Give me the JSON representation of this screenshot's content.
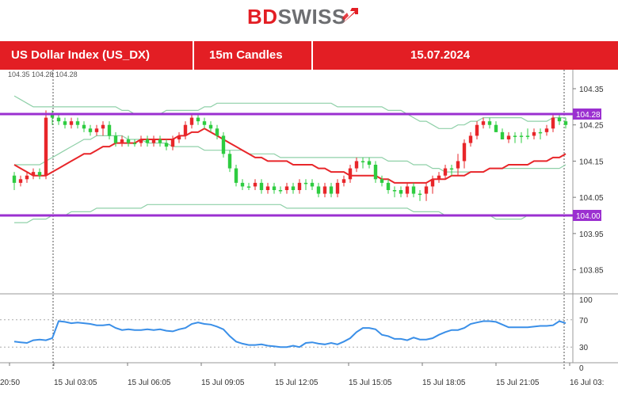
{
  "brand": {
    "name_bd": "BD",
    "name_rest": "SWISS"
  },
  "header": {
    "instrument": "US Dollar Index (US_DX)",
    "timeframe": "15m Candles",
    "date": "15.07.2024"
  },
  "colors": {
    "red": "#e31e24",
    "bull": "#2ecc40",
    "bear": "#e8262a",
    "ma": "#e8262a",
    "bands": "#8fd0a8",
    "level": "#9b30d0",
    "rsi": "#3a8fe8"
  },
  "chart_data": {
    "type": "candlestick",
    "top_left_readout": "104.35 104.28 104.28",
    "price_axis": {
      "ylim": [
        103.79,
        104.385
      ],
      "ticks": [
        "104.35",
        "104.25",
        "104.15",
        "104.05",
        "103.95",
        "103.85"
      ]
    },
    "x_axis": {
      "labels": [
        "20:50",
        "15 Jul 03:05",
        "15 Jul 06:05",
        "15 Jul 09:05",
        "15 Jul 12:05",
        "15 Jul 15:05",
        "15 Jul 18:05",
        "15 Jul 21:05",
        "16 Jul 03:"
      ]
    },
    "levels": [
      {
        "label": "104.28",
        "value": 104.28
      },
      {
        "label": "104.00",
        "value": 104.0
      }
    ],
    "series": [
      {
        "name": "",
        "kind": "candles",
        "close": [
          104.11,
          104.09,
          104.1,
          104.11,
          104.12,
          104.11,
          104.28,
          104.27,
          104.26,
          104.25,
          104.26,
          104.25,
          104.24,
          104.23,
          104.24,
          104.25,
          104.22,
          104.2,
          104.21,
          104.2,
          104.2,
          104.21,
          104.2,
          104.21,
          104.2,
          104.19,
          104.21,
          104.22,
          104.25,
          104.27,
          104.26,
          104.25,
          104.24,
          104.22,
          104.17,
          104.13,
          104.09,
          104.08,
          104.08,
          104.09,
          104.07,
          104.08,
          104.07,
          104.07,
          104.08,
          104.07,
          104.09,
          104.09,
          104.08,
          104.06,
          104.08,
          104.06,
          104.09,
          104.1,
          104.13,
          104.15,
          104.15,
          104.14,
          104.1,
          104.09,
          104.07,
          104.07,
          104.06,
          104.08,
          104.06,
          104.06,
          104.08,
          104.1,
          104.11,
          104.13,
          104.13,
          104.15,
          104.2,
          104.22,
          104.25,
          104.26,
          104.25,
          104.23,
          104.21,
          104.22,
          104.22,
          104.22,
          104.22,
          104.23,
          104.23,
          104.24,
          104.27,
          104.26
        ],
        "open": [
          104.09,
          104.1,
          104.11,
          104.12,
          104.11,
          104.27,
          104.27,
          104.26,
          104.25,
          104.26,
          104.25,
          104.24,
          104.23,
          104.24,
          104.25,
          104.22,
          104.2,
          104.21,
          104.2,
          104.2,
          104.21,
          104.2,
          104.21,
          104.2,
          104.19,
          104.21,
          104.22,
          104.25,
          104.27,
          104.26,
          104.25,
          104.24,
          104.22,
          104.17,
          104.13,
          104.09,
          104.08,
          104.08,
          104.09,
          104.07,
          104.08,
          104.07,
          104.07,
          104.08,
          104.07,
          104.09,
          104.09,
          104.08,
          104.06,
          104.08,
          104.06,
          104.09,
          104.1,
          104.13,
          104.15,
          104.15,
          104.14,
          104.1,
          104.09,
          104.07,
          104.07,
          104.06,
          104.08,
          104.06,
          104.06,
          104.08,
          104.1,
          104.11,
          104.13,
          104.13,
          104.15,
          104.2,
          104.22,
          104.25,
          104.26,
          104.25,
          104.23,
          104.21,
          104.22,
          104.22,
          104.22,
          104.22,
          104.23,
          104.23,
          104.24,
          104.27,
          104.26,
          104.25
        ],
        "low": [
          104.07,
          104.08,
          104.09,
          104.1,
          104.1,
          104.1,
          104.25,
          104.25,
          104.24,
          104.24,
          104.24,
          104.23,
          104.22,
          104.22,
          104.22,
          104.21,
          104.19,
          104.19,
          104.19,
          104.19,
          104.19,
          104.19,
          104.19,
          104.19,
          104.18,
          104.18,
          104.2,
          104.21,
          104.24,
          104.25,
          104.24,
          104.23,
          104.21,
          104.16,
          104.12,
          104.08,
          104.07,
          104.07,
          104.07,
          104.06,
          104.06,
          104.06,
          104.06,
          104.06,
          104.06,
          104.06,
          104.07,
          104.07,
          104.05,
          104.05,
          104.05,
          104.05,
          104.08,
          104.09,
          104.12,
          104.13,
          104.13,
          104.09,
          104.08,
          104.06,
          104.05,
          104.05,
          104.05,
          104.05,
          104.04,
          104.04,
          104.06,
          104.09,
          104.1,
          104.11,
          104.11,
          104.13,
          104.19,
          104.21,
          104.24,
          104.24,
          104.23,
          104.21,
          104.2,
          104.2,
          104.2,
          104.21,
          104.21,
          104.21,
          104.22,
          104.23,
          104.25,
          104.24
        ],
        "high": [
          104.12,
          104.11,
          104.12,
          104.13,
          104.13,
          104.29,
          104.29,
          104.28,
          104.27,
          104.27,
          104.27,
          104.26,
          104.25,
          104.25,
          104.26,
          104.26,
          104.23,
          104.22,
          104.22,
          104.21,
          104.22,
          104.22,
          104.22,
          104.22,
          104.21,
          104.22,
          104.23,
          104.26,
          104.28,
          104.28,
          104.27,
          104.26,
          104.25,
          104.23,
          104.18,
          104.14,
          104.1,
          104.09,
          104.1,
          104.1,
          104.09,
          104.09,
          104.08,
          104.09,
          104.09,
          104.1,
          104.1,
          104.1,
          104.09,
          104.09,
          104.09,
          104.1,
          104.11,
          104.14,
          104.16,
          104.16,
          104.16,
          104.15,
          104.11,
          104.1,
          104.08,
          104.08,
          104.09,
          104.09,
          104.07,
          104.09,
          104.11,
          104.12,
          104.14,
          104.14,
          104.17,
          104.21,
          104.23,
          104.26,
          104.27,
          104.27,
          104.26,
          104.24,
          104.23,
          104.23,
          104.23,
          104.24,
          104.24,
          104.24,
          104.25,
          104.28,
          104.28,
          104.27
        ]
      },
      {
        "name": "",
        "kind": "moving_average",
        "values": [
          104.14,
          104.13,
          104.12,
          104.11,
          104.11,
          104.11,
          104.12,
          104.13,
          104.14,
          104.15,
          104.16,
          104.17,
          104.17,
          104.18,
          104.19,
          104.19,
          104.2,
          104.2,
          104.2,
          104.2,
          104.21,
          104.21,
          104.21,
          104.21,
          104.21,
          104.21,
          104.22,
          104.22,
          104.23,
          104.23,
          104.24,
          104.23,
          104.22,
          104.21,
          104.2,
          104.19,
          104.18,
          104.17,
          104.16,
          104.16,
          104.15,
          104.15,
          104.15,
          104.15,
          104.14,
          104.14,
          104.14,
          104.14,
          104.13,
          104.13,
          104.12,
          104.12,
          104.12,
          104.11,
          104.11,
          104.11,
          104.11,
          104.11,
          104.1,
          104.1,
          104.09,
          104.09,
          104.09,
          104.09,
          104.09,
          104.09,
          104.1,
          104.1,
          104.1,
          104.11,
          104.11,
          104.11,
          104.12,
          104.12,
          104.12,
          104.13,
          104.13,
          104.13,
          104.14,
          104.14,
          104.14,
          104.14,
          104.15,
          104.15,
          104.15,
          104.16,
          104.16,
          104.17
        ]
      },
      {
        "name": "",
        "kind": "band_upper",
        "values": [
          104.33,
          104.32,
          104.31,
          104.3,
          104.3,
          104.3,
          104.3,
          104.3,
          104.3,
          104.3,
          104.3,
          104.3,
          104.3,
          104.3,
          104.3,
          104.3,
          104.3,
          104.29,
          104.29,
          104.28,
          104.28,
          104.28,
          104.28,
          104.28,
          104.29,
          104.29,
          104.29,
          104.29,
          104.29,
          104.29,
          104.3,
          104.3,
          104.31,
          104.31,
          104.31,
          104.31,
          104.31,
          104.31,
          104.31,
          104.31,
          104.31,
          104.31,
          104.31,
          104.31,
          104.31,
          104.31,
          104.31,
          104.31,
          104.31,
          104.31,
          104.31,
          104.3,
          104.3,
          104.3,
          104.3,
          104.3,
          104.3,
          104.3,
          104.3,
          104.29,
          104.29,
          104.29,
          104.28,
          104.27,
          104.26,
          104.26,
          104.25,
          104.24,
          104.24,
          104.24,
          104.25,
          104.25,
          104.26,
          104.26,
          104.27,
          104.27,
          104.27,
          104.27,
          104.27,
          104.27,
          104.27,
          104.26,
          104.26,
          104.26,
          104.26,
          104.27,
          104.27,
          104.27
        ]
      },
      {
        "name": "",
        "kind": "band_middle",
        "values": [
          104.14,
          104.14,
          104.14,
          104.14,
          104.14,
          104.15,
          104.16,
          104.17,
          104.18,
          104.19,
          104.2,
          104.21,
          104.21,
          104.22,
          104.22,
          104.22,
          104.22,
          104.22,
          104.21,
          104.21,
          104.21,
          104.2,
          104.2,
          104.2,
          104.2,
          104.19,
          104.19,
          104.19,
          104.19,
          104.19,
          104.18,
          104.18,
          104.18,
          104.18,
          104.18,
          104.18,
          104.18,
          104.17,
          104.17,
          104.17,
          104.17,
          104.17,
          104.16,
          104.16,
          104.16,
          104.16,
          104.16,
          104.16,
          104.16,
          104.16,
          104.16,
          104.16,
          104.16,
          104.16,
          104.16,
          104.16,
          104.16,
          104.16,
          104.16,
          104.15,
          104.15,
          104.15,
          104.15,
          104.14,
          104.14,
          104.14,
          104.13,
          104.13,
          104.12,
          104.12,
          104.12,
          104.12,
          104.12,
          104.12,
          104.12,
          104.13,
          104.13,
          104.13,
          104.13,
          104.13,
          104.13,
          104.13,
          104.13,
          104.13,
          104.13,
          104.13,
          104.13,
          104.14
        ]
      },
      {
        "name": "",
        "kind": "band_lower",
        "values": [
          103.98,
          103.98,
          103.98,
          103.99,
          103.99,
          103.99,
          104.0,
          104.0,
          104.0,
          104.01,
          104.01,
          104.01,
          104.01,
          104.02,
          104.02,
          104.02,
          104.02,
          104.02,
          104.02,
          104.02,
          104.02,
          104.03,
          104.03,
          104.03,
          104.03,
          104.03,
          104.03,
          104.03,
          104.03,
          104.03,
          104.03,
          104.03,
          104.03,
          104.03,
          104.03,
          104.03,
          104.03,
          104.03,
          104.03,
          104.03,
          104.03,
          104.03,
          104.03,
          104.02,
          104.02,
          104.02,
          104.02,
          104.02,
          104.02,
          104.02,
          104.02,
          104.02,
          104.02,
          104.02,
          104.02,
          104.02,
          104.02,
          104.02,
          104.02,
          104.02,
          104.02,
          104.02,
          104.02,
          104.01,
          104.01,
          104.01,
          104.01,
          104.01,
          104.0,
          104.0,
          104.0,
          104.0,
          104.0,
          104.0,
          104.0,
          104.0,
          103.99,
          103.99,
          103.99,
          103.99,
          103.99,
          104.0,
          104.0,
          104.0,
          104.0,
          104.0,
          104.0,
          104.0
        ]
      }
    ],
    "rsi": {
      "ylim": [
        0,
        100
      ],
      "ticks": [
        "100",
        "70",
        "30",
        "0"
      ],
      "values": [
        38,
        37,
        36,
        40,
        41,
        40,
        43,
        68,
        67,
        65,
        66,
        65,
        64,
        62,
        62,
        63,
        58,
        55,
        56,
        55,
        55,
        56,
        55,
        56,
        54,
        53,
        56,
        58,
        64,
        66,
        64,
        63,
        60,
        56,
        46,
        38,
        35,
        33,
        33,
        34,
        32,
        31,
        30,
        30,
        32,
        30,
        36,
        37,
        35,
        34,
        36,
        34,
        38,
        43,
        52,
        58,
        58,
        56,
        48,
        46,
        42,
        42,
        40,
        44,
        41,
        41,
        43,
        48,
        52,
        55,
        55,
        58,
        64,
        66,
        68,
        68,
        67,
        63,
        59,
        59,
        59,
        59,
        60,
        61,
        61,
        62,
        68,
        65
      ]
    }
  }
}
